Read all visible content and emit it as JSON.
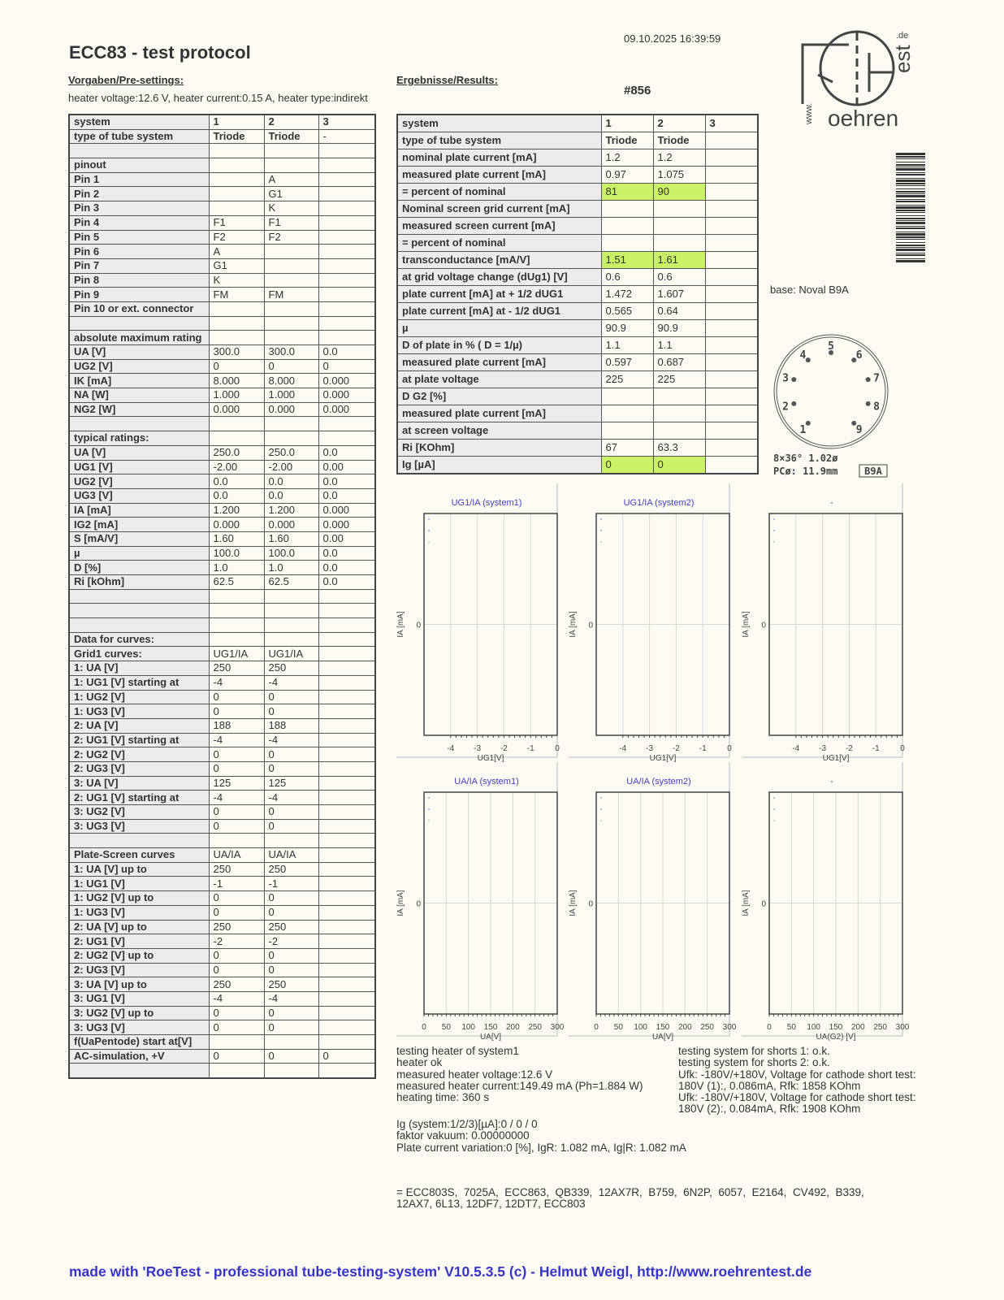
{
  "datetime": "09.10.2025  16:39:59",
  "title": "ECC83  -  test protocol",
  "presettings": {
    "heading": "Vorgaben/Pre-settings:",
    "heater": "heater voltage:12.6 V, heater current:0.15 A, heater type:indirekt"
  },
  "results_heading": "Ergebnisse/Results:",
  "serial": "#856",
  "logo": {
    "text": "www.Roehrentest.de"
  },
  "base": "base: Noval B9A",
  "socket": {
    "pins": [
      "1",
      "2",
      "3",
      "4",
      "5",
      "6",
      "7",
      "8",
      "9"
    ],
    "spec1": "8×36°  1.02ø",
    "spec2": "PCø: 11.9mm",
    "code": "B9A"
  },
  "left_table": [
    [
      "system",
      "1",
      "2",
      "3"
    ],
    [
      "type of tube system",
      "Triode",
      "Triode",
      "-"
    ],
    [
      "",
      "",
      "",
      ""
    ],
    [
      "pinout",
      "",
      "",
      ""
    ],
    [
      "Pin 1",
      "",
      "A",
      ""
    ],
    [
      "Pin 2",
      "",
      "G1",
      ""
    ],
    [
      "Pin 3",
      "",
      "K",
      ""
    ],
    [
      "Pin 4",
      "F1",
      "F1",
      ""
    ],
    [
      "Pin 5",
      "F2",
      "F2",
      ""
    ],
    [
      "Pin 6",
      "A",
      "",
      ""
    ],
    [
      "Pin 7",
      "G1",
      "",
      ""
    ],
    [
      "Pin 8",
      "K",
      "",
      ""
    ],
    [
      "Pin 9",
      "FM",
      "FM",
      ""
    ],
    [
      "Pin 10 or ext. connector",
      "",
      "",
      ""
    ],
    [
      "",
      "",
      "",
      ""
    ],
    [
      "absolute maximum rating",
      "",
      "",
      ""
    ],
    [
      "UA [V]",
      "300.0",
      "300.0",
      "0.0"
    ],
    [
      "UG2 [V]",
      "0",
      "0",
      "0"
    ],
    [
      "IK [mA]",
      "8.000",
      "8.000",
      "0.000"
    ],
    [
      "NA [W]",
      "1.000",
      "1.000",
      "0.000"
    ],
    [
      "NG2 [W]",
      "0.000",
      "0.000",
      "0.000"
    ],
    [
      "",
      "",
      "",
      ""
    ],
    [
      "typical ratings:",
      "",
      "",
      ""
    ],
    [
      "UA [V]",
      "250.0",
      "250.0",
      "0.0"
    ],
    [
      "UG1 [V]",
      "-2.00",
      "-2.00",
      "0.00"
    ],
    [
      "UG2 [V]",
      "0.0",
      "0.0",
      "0.0"
    ],
    [
      "UG3 [V]",
      "0.0",
      "0.0",
      "0.0"
    ],
    [
      "IA [mA]",
      "1.200",
      "1.200",
      "0.000"
    ],
    [
      "IG2 [mA]",
      "0.000",
      "0.000",
      "0.000"
    ],
    [
      "S [mA/V]",
      "1.60",
      "1.60",
      "0.00"
    ],
    [
      "µ",
      "100.0",
      "100.0",
      "0.0"
    ],
    [
      "D [%]",
      "1.0",
      "1.0",
      "0.0"
    ],
    [
      "Ri [kOhm]",
      "62.5",
      "62.5",
      "0.0"
    ],
    [
      "",
      "",
      "",
      ""
    ],
    [
      "",
      "",
      "",
      ""
    ],
    [
      "",
      "",
      "",
      ""
    ],
    [
      "Data for curves:",
      "",
      "",
      ""
    ],
    [
      "Grid1 curves:",
      "UG1/IA",
      "UG1/IA",
      ""
    ],
    [
      "1: UA [V]",
      "250",
      "250",
      ""
    ],
    [
      "1: UG1 [V] starting at",
      "-4",
      "-4",
      ""
    ],
    [
      "1: UG2 [V]",
      "0",
      "0",
      ""
    ],
    [
      "1: UG3 [V]",
      "0",
      "0",
      ""
    ],
    [
      "2: UA [V]",
      "188",
      "188",
      ""
    ],
    [
      "2: UG1 [V] starting at",
      "-4",
      "-4",
      ""
    ],
    [
      "2: UG2 [V]",
      "0",
      "0",
      ""
    ],
    [
      "2: UG3 [V]",
      "0",
      "0",
      ""
    ],
    [
      "3: UA [V]",
      "125",
      "125",
      ""
    ],
    [
      "2: UG1 [V] starting at",
      "-4",
      "-4",
      ""
    ],
    [
      "3: UG2 [V]",
      "0",
      "0",
      ""
    ],
    [
      "3: UG3 [V]",
      "0",
      "0",
      ""
    ],
    [
      "",
      "",
      "",
      ""
    ],
    [
      "Plate-Screen curves",
      "UA/IA",
      "UA/IA",
      ""
    ],
    [
      "1: UA [V] up to",
      "250",
      "250",
      ""
    ],
    [
      "1: UG1 [V]",
      "-1",
      "-1",
      ""
    ],
    [
      "1: UG2 [V] up to",
      "0",
      "0",
      ""
    ],
    [
      "1: UG3 [V]",
      "0",
      "0",
      ""
    ],
    [
      "2: UA [V] up to",
      "250",
      "250",
      ""
    ],
    [
      "2: UG1 [V]",
      "-2",
      "-2",
      ""
    ],
    [
      "2: UG2 [V] up to",
      "0",
      "0",
      ""
    ],
    [
      "2: UG3 [V]",
      "0",
      "0",
      ""
    ],
    [
      "3: UA [V] up to",
      "250",
      "250",
      ""
    ],
    [
      "3: UG1 [V]",
      "-4",
      "-4",
      ""
    ],
    [
      "3: UG2 [V] up to",
      "0",
      "0",
      ""
    ],
    [
      "3: UG3 [V]",
      "0",
      "0",
      ""
    ],
    [
      "f(UaPentode) start at[V]",
      "",
      "",
      ""
    ],
    [
      "AC-simulation, +V",
      "0",
      "0",
      "0"
    ],
    [
      "",
      "",
      "",
      ""
    ]
  ],
  "right_table": [
    [
      "system",
      "1",
      "2",
      "3"
    ],
    [
      "type of tube system",
      "Triode",
      "Triode",
      ""
    ],
    [
      "nominal plate current [mA]",
      "1.2",
      "1.2",
      ""
    ],
    [
      "measured plate current [mA]",
      "0.97",
      "1.075",
      ""
    ],
    [
      "= percent of nominal",
      "81",
      "90",
      ""
    ],
    [
      "Nominal screen grid current [mA]",
      "",
      "",
      ""
    ],
    [
      "measured screen current [mA]",
      "",
      "",
      ""
    ],
    [
      "= percent of nominal",
      "",
      "",
      ""
    ],
    [
      "transconductance [mA/V]",
      "1.51",
      "1.61",
      ""
    ],
    [
      "at grid voltage change (dUg1) [V]",
      "0.6",
      "0.6",
      ""
    ],
    [
      "plate current [mA] at + 1/2 dUG1",
      "1.472",
      "1.607",
      ""
    ],
    [
      "plate current [mA] at - 1/2 dUG1",
      "0.565",
      "0.64",
      ""
    ],
    [
      "µ",
      "90.9",
      "90.9",
      ""
    ],
    [
      "D of plate in % ( D = 1/µ)",
      "1.1",
      "1.1",
      ""
    ],
    [
      "measured plate current [mA]",
      "0.597",
      "0.687",
      ""
    ],
    [
      "at plate voltage",
      "225",
      "225",
      ""
    ],
    [
      "D G2 [%]",
      "",
      "",
      ""
    ],
    [
      "measured plate current [mA]",
      "",
      "",
      ""
    ],
    [
      "at screen voltage",
      "",
      "",
      ""
    ],
    [
      "Ri [KOhm]",
      "67",
      "63.3",
      ""
    ],
    [
      "Ig [µA]",
      "0",
      "0",
      ""
    ]
  ],
  "highlight_rows": [
    4,
    8,
    20
  ],
  "colors": {
    "highlight": "#c9f266",
    "footer": "#3535c8",
    "chart_title": "#4040c0"
  },
  "chart_data": [
    {
      "type": "line",
      "title": "UG1/IA (system1)",
      "xlabel": "UG1[V]",
      "ylabel": "IA [mA]",
      "xticks": [
        "-4",
        "-3",
        "-2",
        "-1",
        "0"
      ],
      "xlim": [
        -5,
        0
      ],
      "yticks": [
        "0"
      ],
      "grid": true,
      "series": []
    },
    {
      "type": "line",
      "title": "UG1/IA (system2)",
      "xlabel": "UG1[V]",
      "ylabel": "IA [mA]",
      "xticks": [
        "-4",
        "-3",
        "-2",
        "-1",
        "0"
      ],
      "xlim": [
        -5,
        0
      ],
      "yticks": [
        "0"
      ],
      "grid": true,
      "series": []
    },
    {
      "type": "line",
      "title": "-",
      "xlabel": "UG1[V]",
      "ylabel": "IA [mA]",
      "xticks": [
        "-4",
        "-3",
        "-2",
        "-1",
        "0"
      ],
      "xlim": [
        -5,
        0
      ],
      "yticks": [
        "0"
      ],
      "grid": true,
      "series": []
    },
    {
      "type": "line",
      "title": "UA/IA (system1)",
      "xlabel": "UA[V]",
      "ylabel": "IA [mA]",
      "xticks": [
        "0",
        "50",
        "100",
        "150",
        "200",
        "250",
        "300"
      ],
      "xlim": [
        0,
        300
      ],
      "yticks": [
        "0"
      ],
      "grid": true,
      "series": []
    },
    {
      "type": "line",
      "title": "UA/IA (system2)",
      "xlabel": "UA[V]",
      "ylabel": "IA [mA]",
      "xticks": [
        "0",
        "50",
        "100",
        "150",
        "200",
        "250",
        "300"
      ],
      "xlim": [
        0,
        300
      ],
      "yticks": [
        "0"
      ],
      "grid": true,
      "series": []
    },
    {
      "type": "line",
      "title": "-",
      "xlabel": "UA(G2) [V]",
      "ylabel": "IA [mA]",
      "xticks": [
        "0",
        "50",
        "100",
        "150",
        "200",
        "250",
        "300"
      ],
      "xlim": [
        0,
        300
      ],
      "yticks": [
        "0"
      ],
      "grid": true,
      "series": []
    }
  ],
  "heater_text": "testing heater of system1\nheater ok\nmeasured heater voltage:12.6 V\nmeasured heater current:149.49 mA (Ph=1.884 W)\nheating time: 360 s",
  "shorts_text": "testing system for shorts 1: o.k.\ntesting system for shorts 2: o.k.\nUfk: -180V/+180V, Voltage for cathode short test:\n180V (1):, 0.086mA, Rfk: 1858 KOhm\nUfk: -180V/+180V, Voltage for cathode short test:\n180V (2):, 0.084mA, Rfk: 1908 KOhm",
  "ig_text": "Ig (system:1/2/3)[µA]:0 / 0 / 0\nfaktor vakuum: 0.00000000\nPlate current variation:0 [%], IgR: 1.082 mA, Ig|R: 1.082 mA",
  "equivalents": "= ECC803S,  7025A,  ECC863,  QB339,  12AX7R,  B759,  6N2P,  6057,  E2164,  CV492,  B339,\n12AX7, 6L13, 12DF7, 12DT7, ECC803",
  "footer": "made with 'RoeTest - professional tube-testing-system' V10.5.3.5 (c) - Helmut Weigl, http://www.roehrentest.de"
}
